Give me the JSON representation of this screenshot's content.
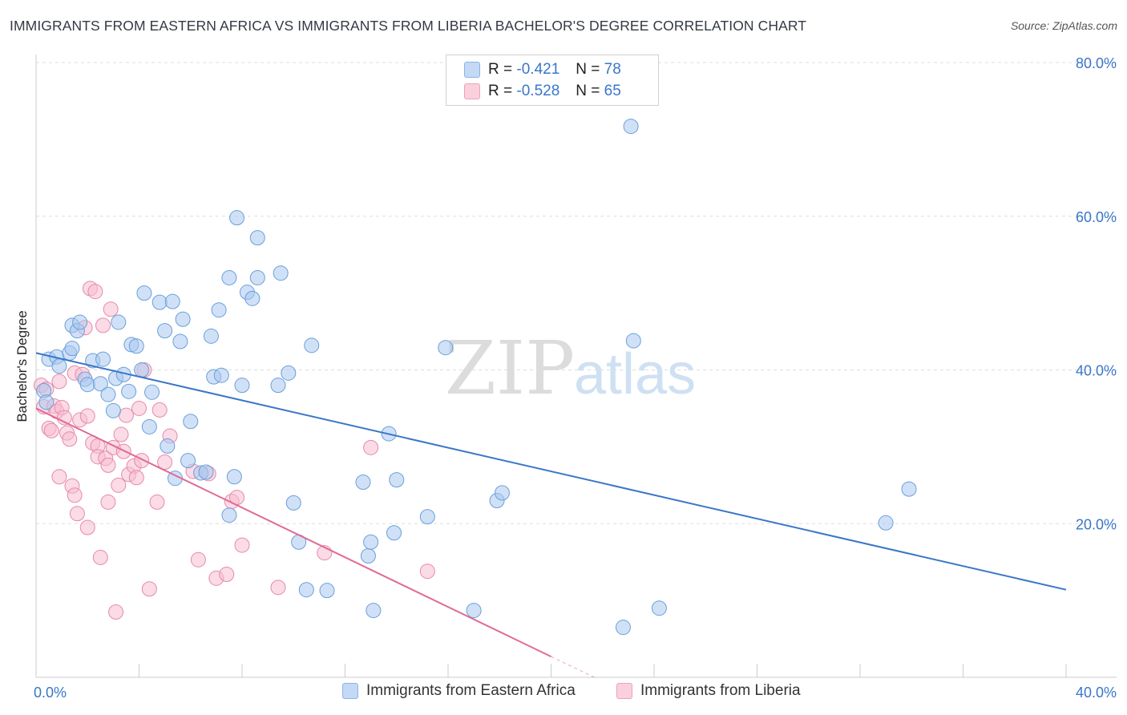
{
  "header": {
    "title": "IMMIGRANTS FROM EASTERN AFRICA VS IMMIGRANTS FROM LIBERIA BACHELOR'S DEGREE CORRELATION CHART",
    "source": "Source: ZipAtlas.com"
  },
  "watermark": {
    "zip": "ZIP",
    "atlas": "atlas"
  },
  "legend": {
    "r_label": "R =",
    "n_label": "N =",
    "rows": [
      {
        "r": "-0.421",
        "n": "78",
        "color": "#a9c8f0"
      },
      {
        "r": "-0.528",
        "n": "65",
        "color": "#f7bed0"
      }
    ]
  },
  "bottom_legend": [
    {
      "label": "Immigrants from Eastern Africa",
      "color": "#a9c8f0"
    },
    {
      "label": "Immigrants from Liberia",
      "color": "#f7bed0"
    }
  ],
  "colors": {
    "blue_line": "#3a76c8",
    "pink_line": "#e06a96",
    "axis_text": "#3a76c8"
  },
  "chart_data": {
    "type": "scatter",
    "ylabel": "Bachelor's Degree",
    "xlabel": "",
    "xlim": [
      0,
      40
    ],
    "ylim": [
      0,
      80
    ],
    "y_ticks": [
      20,
      40,
      60,
      80
    ],
    "y_tick_labels": [
      "20.0%",
      "40.0%",
      "60.0%",
      "80.0%"
    ],
    "x_tick_labels": [
      "0.0%",
      "40.0%"
    ],
    "grid": true,
    "series": [
      {
        "name": "Immigrants from Eastern Africa",
        "color": "#a9c8f0",
        "stroke": "#6a9fd9",
        "trend": {
          "x": [
            0,
            40
          ],
          "y": [
            42.2,
            11.4
          ]
        },
        "points": [
          [
            0.3,
            37.3
          ],
          [
            0.4,
            35.8
          ],
          [
            0.5,
            41.4
          ],
          [
            0.8,
            41.7
          ],
          [
            0.9,
            40.5
          ],
          [
            1.3,
            42.2
          ],
          [
            1.4,
            42.8
          ],
          [
            1.4,
            45.8
          ],
          [
            1.6,
            45.1
          ],
          [
            1.7,
            46.2
          ],
          [
            1.9,
            38.8
          ],
          [
            2.0,
            38.1
          ],
          [
            2.2,
            41.2
          ],
          [
            2.5,
            38.2
          ],
          [
            2.6,
            41.4
          ],
          [
            2.8,
            36.8
          ],
          [
            3.0,
            34.7
          ],
          [
            3.1,
            38.9
          ],
          [
            3.2,
            46.2
          ],
          [
            3.4,
            39.4
          ],
          [
            3.6,
            37.2
          ],
          [
            3.7,
            43.3
          ],
          [
            3.9,
            43.1
          ],
          [
            4.1,
            40.0
          ],
          [
            4.2,
            50.0
          ],
          [
            4.4,
            32.6
          ],
          [
            4.5,
            37.1
          ],
          [
            4.8,
            48.8
          ],
          [
            5.0,
            45.1
          ],
          [
            5.1,
            30.1
          ],
          [
            5.3,
            48.9
          ],
          [
            5.4,
            25.9
          ],
          [
            5.6,
            43.7
          ],
          [
            5.7,
            46.6
          ],
          [
            5.9,
            28.2
          ],
          [
            6.0,
            33.3
          ],
          [
            6.4,
            26.6
          ],
          [
            6.6,
            26.7
          ],
          [
            6.8,
            44.4
          ],
          [
            6.9,
            39.1
          ],
          [
            7.1,
            47.8
          ],
          [
            7.2,
            39.3
          ],
          [
            7.5,
            21.1
          ],
          [
            7.5,
            52.0
          ],
          [
            7.7,
            26.1
          ],
          [
            7.8,
            59.8
          ],
          [
            8.0,
            38.0
          ],
          [
            8.2,
            50.1
          ],
          [
            8.4,
            49.3
          ],
          [
            8.6,
            57.2
          ],
          [
            8.6,
            52.0
          ],
          [
            9.4,
            38.0
          ],
          [
            9.5,
            52.6
          ],
          [
            9.8,
            39.6
          ],
          [
            10.0,
            22.7
          ],
          [
            10.2,
            17.6
          ],
          [
            10.5,
            11.4
          ],
          [
            10.7,
            43.2
          ],
          [
            11.3,
            11.3
          ],
          [
            12.7,
            25.4
          ],
          [
            12.9,
            15.8
          ],
          [
            13.0,
            17.6
          ],
          [
            13.1,
            8.7
          ],
          [
            13.7,
            31.7
          ],
          [
            13.9,
            18.8
          ],
          [
            14.0,
            25.7
          ],
          [
            15.2,
            20.9
          ],
          [
            15.9,
            42.9
          ],
          [
            17.0,
            8.7
          ],
          [
            17.9,
            23.0
          ],
          [
            18.1,
            24.0
          ],
          [
            22.8,
            6.5
          ],
          [
            23.1,
            71.7
          ],
          [
            23.2,
            43.8
          ],
          [
            24.2,
            9.0
          ],
          [
            33.0,
            20.1
          ],
          [
            33.9,
            24.5
          ]
        ]
      },
      {
        "name": "Immigrants from Liberia",
        "color": "#f7bed0",
        "stroke": "#e58aaa",
        "trend": {
          "x": [
            0,
            20
          ],
          "y": [
            35.0,
            2.7
          ],
          "dash_x": [
            20,
            21.8
          ],
          "dash_y": [
            2.7,
            -0.2
          ]
        },
        "points": [
          [
            0.2,
            38.0
          ],
          [
            0.3,
            35.2
          ],
          [
            0.4,
            37.5
          ],
          [
            0.5,
            32.4
          ],
          [
            0.6,
            32.1
          ],
          [
            0.7,
            35.3
          ],
          [
            0.8,
            34.6
          ],
          [
            0.9,
            26.1
          ],
          [
            0.9,
            38.5
          ],
          [
            1.0,
            35.1
          ],
          [
            1.1,
            33.8
          ],
          [
            1.2,
            31.8
          ],
          [
            1.3,
            31.0
          ],
          [
            1.4,
            24.9
          ],
          [
            1.5,
            39.6
          ],
          [
            1.5,
            23.7
          ],
          [
            1.6,
            21.3
          ],
          [
            1.7,
            33.5
          ],
          [
            1.8,
            39.4
          ],
          [
            1.9,
            45.5
          ],
          [
            2.0,
            34.0
          ],
          [
            2.0,
            19.5
          ],
          [
            2.1,
            50.6
          ],
          [
            2.2,
            30.5
          ],
          [
            2.3,
            50.2
          ],
          [
            2.4,
            30.1
          ],
          [
            2.4,
            28.7
          ],
          [
            2.5,
            15.6
          ],
          [
            2.6,
            45.8
          ],
          [
            2.7,
            28.5
          ],
          [
            2.8,
            27.6
          ],
          [
            2.8,
            22.8
          ],
          [
            2.9,
            47.9
          ],
          [
            3.0,
            29.9
          ],
          [
            3.1,
            8.5
          ],
          [
            3.2,
            25.0
          ],
          [
            3.3,
            31.6
          ],
          [
            3.4,
            29.4
          ],
          [
            3.5,
            34.1
          ],
          [
            3.6,
            26.4
          ],
          [
            3.8,
            27.5
          ],
          [
            3.9,
            26.0
          ],
          [
            4.0,
            35.0
          ],
          [
            4.1,
            28.2
          ],
          [
            4.2,
            40.0
          ],
          [
            4.4,
            11.5
          ],
          [
            4.7,
            22.8
          ],
          [
            4.8,
            34.8
          ],
          [
            5.0,
            28.0
          ],
          [
            5.2,
            31.4
          ],
          [
            6.1,
            26.8
          ],
          [
            6.3,
            15.3
          ],
          [
            6.7,
            26.5
          ],
          [
            7.0,
            12.9
          ],
          [
            7.4,
            13.4
          ],
          [
            7.6,
            22.9
          ],
          [
            7.8,
            23.4
          ],
          [
            8.0,
            17.2
          ],
          [
            9.4,
            11.7
          ],
          [
            11.2,
            16.2
          ],
          [
            13.0,
            29.9
          ],
          [
            15.2,
            13.8
          ]
        ]
      }
    ]
  }
}
